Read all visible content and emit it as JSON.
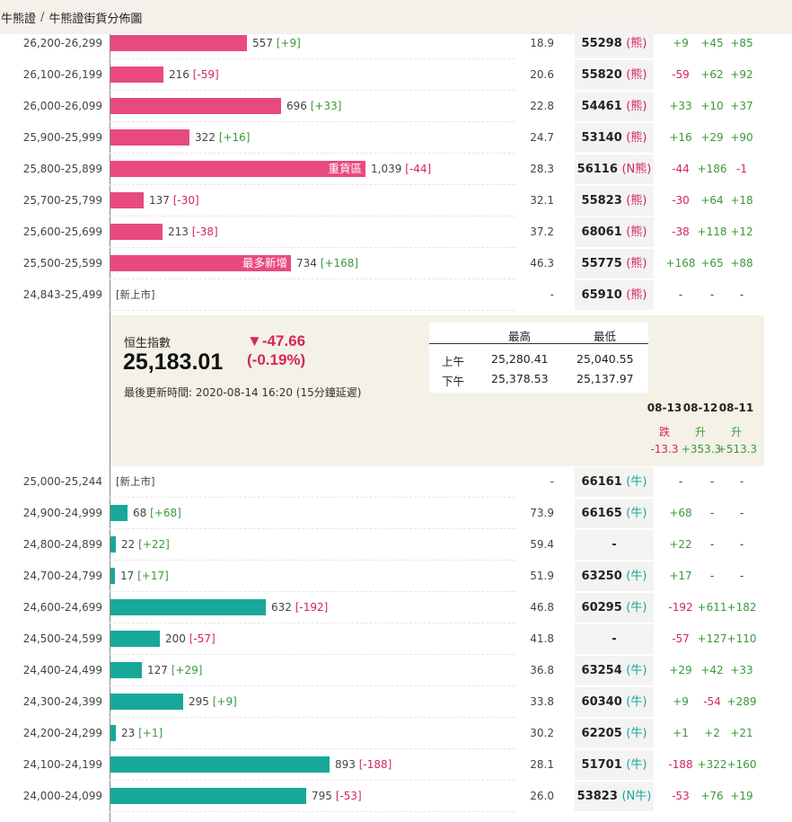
{
  "breadcrumb": {
    "parent": "牛熊證",
    "separator": "/",
    "current": "牛熊證街貨分佈圖"
  },
  "colors": {
    "bear": "#e84a7f",
    "bull": "#17a89a",
    "up": "#3a9a3a",
    "down": "#d6245c"
  },
  "bear_rows": [
    {
      "range": "26,200-26,299",
      "qty": "557",
      "chg": "[+9]",
      "fill": 0.1367,
      "tag": "",
      "pct": "18.9",
      "code": "55298",
      "kind": "(熊)",
      "d1": "+9",
      "d2": "+45",
      "d3": "+85"
    },
    {
      "range": "26,100-26,199",
      "qty": "216",
      "chg": "[-59]",
      "fill": 0.053,
      "tag": "",
      "pct": "20.6",
      "code": "55820",
      "kind": "(熊)",
      "d1": "-59",
      "d2": "+62",
      "d3": "+92"
    },
    {
      "range": "26,000-26,099",
      "qty": "696",
      "chg": "[+33]",
      "fill": 0.1708,
      "tag": "",
      "pct": "22.8",
      "code": "54461",
      "kind": "(熊)",
      "d1": "+33",
      "d2": "+10",
      "d3": "+37"
    },
    {
      "range": "25,900-25,999",
      "qty": "322",
      "chg": "[+16]",
      "fill": 0.079,
      "tag": "",
      "pct": "24.7",
      "code": "53140",
      "kind": "(熊)",
      "d1": "+16",
      "d2": "+29",
      "d3": "+90"
    },
    {
      "range": "25,800-25,899",
      "qty": "1,039",
      "chg": "[-44]",
      "fill": 0.255,
      "tag": "重貨區",
      "pct": "28.3",
      "code": "56116",
      "kind": "(N熊)",
      "d1": "-44",
      "d2": "+186",
      "d3": "-1"
    },
    {
      "range": "25,700-25,799",
      "qty": "137",
      "chg": "[-30]",
      "fill": 0.0336,
      "tag": "",
      "pct": "32.1",
      "code": "55823",
      "kind": "(熊)",
      "d1": "-30",
      "d2": "+64",
      "d3": "+18"
    },
    {
      "range": "25,600-25,699",
      "qty": "213",
      "chg": "[-38]",
      "fill": 0.0523,
      "tag": "",
      "pct": "37.2",
      "code": "68061",
      "kind": "(熊)",
      "d1": "-38",
      "d2": "+118",
      "d3": "+12"
    },
    {
      "range": "25,500-25,599",
      "qty": "734",
      "chg": "[+168]",
      "fill": 0.1801,
      "tag": "最多新增",
      "pct": "46.3",
      "code": "55775",
      "kind": "(熊)",
      "d1": "+168",
      "d2": "+65",
      "d3": "+88"
    },
    {
      "range": "24,843-25,499",
      "qty": "",
      "chg": "",
      "fill": 0,
      "tag": "",
      "newlisted": "[新上市]",
      "pct": "-",
      "code": "65910",
      "kind": "(熊)",
      "d1": "-",
      "d2": "-",
      "d3": "-"
    }
  ],
  "bull_rows": [
    {
      "range": "25,000-25,244",
      "qty": "",
      "chg": "",
      "fill": 0,
      "tag": "",
      "newlisted": "[新上市]",
      "pct": "-",
      "code": "66161",
      "kind": "(牛)",
      "d1": "-",
      "d2": "-",
      "d3": "-"
    },
    {
      "range": "24,900-24,999",
      "qty": "68",
      "chg": "[+68]",
      "fill": 0.0167,
      "tag": "",
      "pct": "73.9",
      "code": "66165",
      "kind": "(牛)",
      "d1": "+68",
      "d2": "-",
      "d3": "-"
    },
    {
      "range": "24,800-24,899",
      "qty": "22",
      "chg": "[+22]",
      "fill": 0.0054,
      "tag": "",
      "pct": "59.4",
      "code": "-",
      "kind": "",
      "d1": "+22",
      "d2": "-",
      "d3": "-"
    },
    {
      "range": "24,700-24,799",
      "qty": "17",
      "chg": "[+17]",
      "fill": 0.0042,
      "tag": "",
      "pct": "51.9",
      "code": "63250",
      "kind": "(牛)",
      "d1": "+17",
      "d2": "-",
      "d3": "-"
    },
    {
      "range": "24,600-24,699",
      "qty": "632",
      "chg": "[-192]",
      "fill": 0.1551,
      "tag": "",
      "pct": "46.8",
      "code": "60295",
      "kind": "(牛)",
      "d1": "-192",
      "d2": "+611",
      "d3": "+182"
    },
    {
      "range": "24,500-24,599",
      "qty": "200",
      "chg": "[-57]",
      "fill": 0.0491,
      "tag": "",
      "pct": "41.8",
      "code": "-",
      "kind": "",
      "d1": "-57",
      "d2": "+127",
      "d3": "+110"
    },
    {
      "range": "24,400-24,499",
      "qty": "127",
      "chg": "[+29]",
      "fill": 0.0312,
      "tag": "",
      "pct": "36.8",
      "code": "63254",
      "kind": "(牛)",
      "d1": "+29",
      "d2": "+42",
      "d3": "+33"
    },
    {
      "range": "24,300-24,399",
      "qty": "295",
      "chg": "[+9]",
      "fill": 0.0724,
      "tag": "",
      "pct": "33.8",
      "code": "60340",
      "kind": "(牛)",
      "d1": "+9",
      "d2": "-54",
      "d3": "+289"
    },
    {
      "range": "24,200-24,299",
      "qty": "23",
      "chg": "[+1]",
      "fill": 0.0056,
      "tag": "",
      "pct": "30.2",
      "code": "62205",
      "kind": "(牛)",
      "d1": "+1",
      "d2": "+2",
      "d3": "+21"
    },
    {
      "range": "24,100-24,199",
      "qty": "893",
      "chg": "[-188]",
      "fill": 0.2192,
      "tag": "",
      "pct": "28.1",
      "code": "51701",
      "kind": "(牛)",
      "d1": "-188",
      "d2": "+322",
      "d3": "+160"
    },
    {
      "range": "24,000-24,099",
      "qty": "795",
      "chg": "[-53]",
      "fill": 0.1951,
      "tag": "",
      "pct": "26.0",
      "code": "53823",
      "kind": "(N牛)",
      "d1": "-53",
      "d2": "+76",
      "d3": "+19"
    }
  ],
  "index": {
    "name": "恒生指數",
    "value": "25,183.01",
    "change_arrow": "▼",
    "change": "-47.66",
    "change_pct": "(-0.19%)",
    "updated": "最後更新時間: 2020-08-14 16:20 (15分鐘延遲)",
    "hl_table": {
      "col_high": "最高",
      "col_low": "最低",
      "rows": [
        {
          "label": "上午",
          "high": "25,280.41",
          "low": "25,040.55"
        },
        {
          "label": "下午",
          "high": "25,378.53",
          "low": "25,137.97"
        }
      ]
    },
    "days": [
      {
        "date": "08-13",
        "dir": "跌",
        "chg": "-13.3"
      },
      {
        "date": "08-12",
        "dir": "升",
        "chg": "+353.3"
      },
      {
        "date": "08-11",
        "dir": "升",
        "chg": "+513.3"
      }
    ]
  }
}
